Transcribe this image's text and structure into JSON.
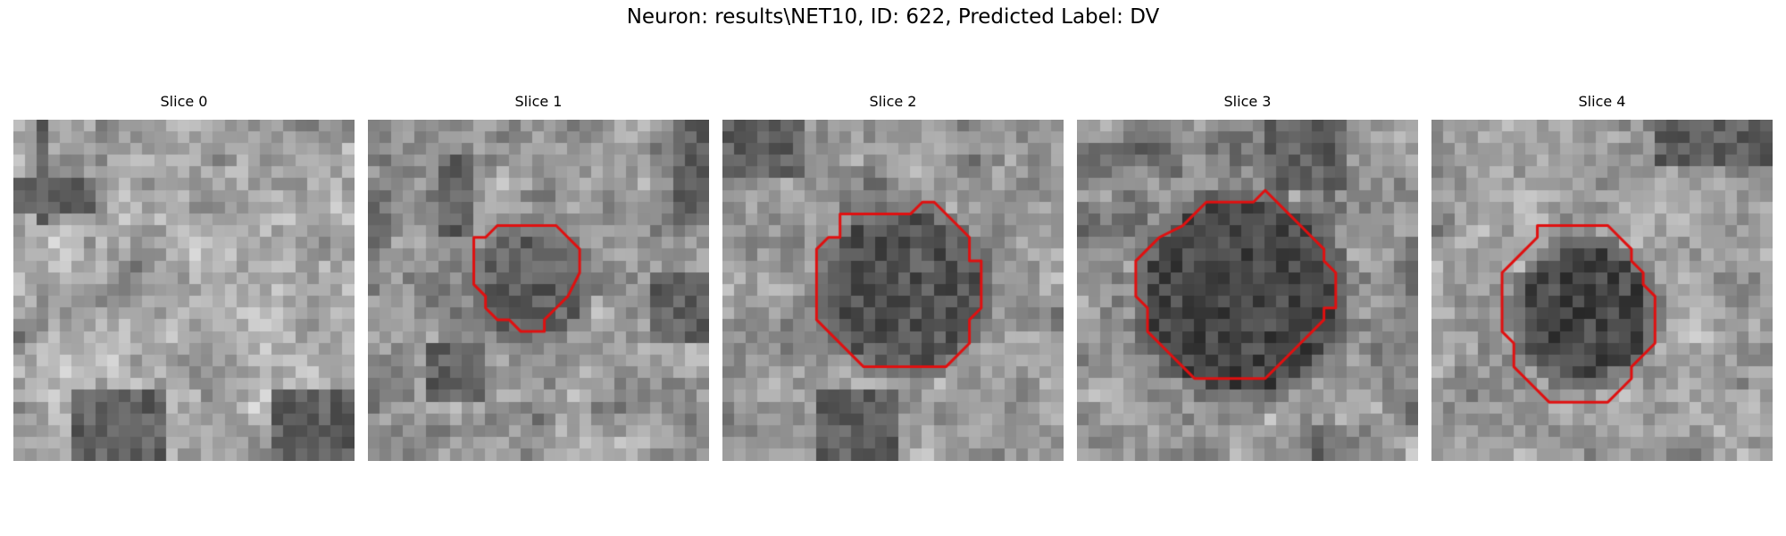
{
  "figure": {
    "title": "Neuron: results\\NET10, ID: 622, Predicted Label: DV"
  },
  "contour_color": "#e01010",
  "panels": [
    {
      "title": "Slice 0",
      "contour": null
    },
    {
      "title": "Slice 1",
      "contour": [
        [
          14,
          9
        ],
        [
          16,
          9
        ],
        [
          17,
          10
        ],
        [
          18,
          11
        ],
        [
          18,
          13
        ],
        [
          17,
          15
        ],
        [
          16,
          16
        ],
        [
          15,
          17
        ],
        [
          15,
          18
        ],
        [
          13,
          18
        ],
        [
          12,
          17
        ],
        [
          11,
          17
        ],
        [
          10,
          16
        ],
        [
          10,
          15
        ],
        [
          9,
          14
        ],
        [
          9,
          10
        ],
        [
          10,
          10
        ],
        [
          11,
          9
        ]
      ]
    },
    {
      "title": "Slice 2",
      "contour": [
        [
          10,
          8
        ],
        [
          16,
          8
        ],
        [
          17,
          7
        ],
        [
          18,
          7
        ],
        [
          20,
          9
        ],
        [
          21,
          10
        ],
        [
          21,
          12
        ],
        [
          22,
          12
        ],
        [
          22,
          16
        ],
        [
          21,
          17
        ],
        [
          21,
          19
        ],
        [
          19,
          21
        ],
        [
          12,
          21
        ],
        [
          9,
          18
        ],
        [
          8,
          17
        ],
        [
          8,
          11
        ],
        [
          9,
          10
        ],
        [
          10,
          10
        ]
      ]
    },
    {
      "title": "Slice 3",
      "contour": [
        [
          11,
          7
        ],
        [
          15,
          7
        ],
        [
          16,
          6
        ],
        [
          18,
          8
        ],
        [
          19,
          9
        ],
        [
          20,
          10
        ],
        [
          21,
          11
        ],
        [
          21,
          12
        ],
        [
          22,
          13
        ],
        [
          22,
          16
        ],
        [
          21,
          16
        ],
        [
          21,
          17
        ],
        [
          20,
          18
        ],
        [
          19,
          19
        ],
        [
          18,
          20
        ],
        [
          17,
          21
        ],
        [
          16,
          22
        ],
        [
          10,
          22
        ],
        [
          9,
          21
        ],
        [
          8,
          20
        ],
        [
          7,
          19
        ],
        [
          6,
          18
        ],
        [
          6,
          16
        ],
        [
          5,
          15
        ],
        [
          5,
          12
        ],
        [
          6,
          11
        ],
        [
          7,
          10
        ],
        [
          9,
          9
        ],
        [
          10,
          8
        ]
      ]
    },
    {
      "title": "Slice 4",
      "contour": [
        [
          9,
          9
        ],
        [
          15,
          9
        ],
        [
          16,
          10
        ],
        [
          17,
          11
        ],
        [
          17,
          12
        ],
        [
          18,
          13
        ],
        [
          18,
          14
        ],
        [
          19,
          15
        ],
        [
          19,
          19
        ],
        [
          18,
          20
        ],
        [
          17,
          21
        ],
        [
          17,
          22
        ],
        [
          16,
          23
        ],
        [
          15,
          24
        ],
        [
          10,
          24
        ],
        [
          8,
          22
        ],
        [
          7,
          21
        ],
        [
          7,
          19
        ],
        [
          6,
          18
        ],
        [
          6,
          13
        ],
        [
          7,
          12
        ],
        [
          8,
          11
        ],
        [
          9,
          10
        ]
      ]
    }
  ]
}
